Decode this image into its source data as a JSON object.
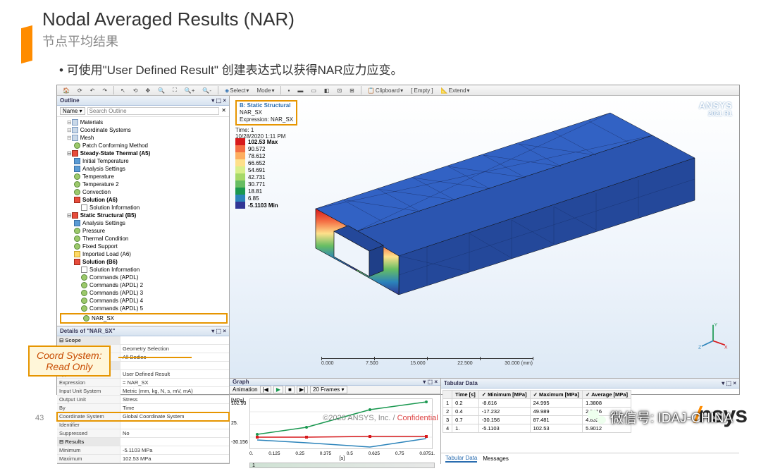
{
  "slide": {
    "title_en": "Nodal Averaged Results (NAR)",
    "title_zh": "节点平均结果",
    "bullet1": "可使用\"User Defined Result\" 创建表达式以获得NAR应力应变。",
    "page_no": "43",
    "copyright": "©2020 ANSYS, Inc. / ",
    "conf": "Confidential",
    "callout_l1": "Coord System:",
    "callout_l2": "Read Only"
  },
  "toolbar": {
    "select": "Select",
    "mode": "Mode",
    "clipboard": "Clipboard",
    "empty": "[ Empty ]",
    "extend": "Extend"
  },
  "outline": {
    "hdr": "Outline",
    "name": "Name",
    "search_ph": "Search Outline",
    "tree": [
      {
        "lvl": 1,
        "icon": "m",
        "label": "Materials"
      },
      {
        "lvl": 1,
        "icon": "m",
        "label": "Coordinate Systems"
      },
      {
        "lvl": 1,
        "icon": "m",
        "label": "Mesh"
      },
      {
        "lvl": 2,
        "icon": "g",
        "label": "Patch Conforming Method"
      },
      {
        "lvl": 1,
        "icon": "r",
        "label": "Steady-State Thermal (A5)",
        "bold": true
      },
      {
        "lvl": 2,
        "icon": "b",
        "label": "Initial Temperature"
      },
      {
        "lvl": 2,
        "icon": "b",
        "label": "Analysis Settings"
      },
      {
        "lvl": 2,
        "icon": "g",
        "label": "Temperature"
      },
      {
        "lvl": 2,
        "icon": "g",
        "label": "Temperature 2"
      },
      {
        "lvl": 2,
        "icon": "g",
        "label": "Convection"
      },
      {
        "lvl": 2,
        "icon": "r",
        "label": "Solution (A6)",
        "bold": true
      },
      {
        "lvl": 3,
        "icon": "p",
        "label": "Solution Information"
      },
      {
        "lvl": 1,
        "icon": "r",
        "label": "Static Structural (B5)",
        "bold": true
      },
      {
        "lvl": 2,
        "icon": "b",
        "label": "Analysis Settings"
      },
      {
        "lvl": 2,
        "icon": "g",
        "label": "Pressure"
      },
      {
        "lvl": 2,
        "icon": "g",
        "label": "Thermal Condition"
      },
      {
        "lvl": 2,
        "icon": "g",
        "label": "Fixed Support"
      },
      {
        "lvl": 2,
        "icon": "y",
        "label": "Imported Load (A6)"
      },
      {
        "lvl": 2,
        "icon": "r",
        "label": "Solution (B6)",
        "bold": true
      },
      {
        "lvl": 3,
        "icon": "p",
        "label": "Solution Information"
      },
      {
        "lvl": 3,
        "icon": "g",
        "label": "Commands (APDL)"
      },
      {
        "lvl": 3,
        "icon": "g",
        "label": "Commands (APDL) 2"
      },
      {
        "lvl": 3,
        "icon": "g",
        "label": "Commands (APDL) 3"
      },
      {
        "lvl": 3,
        "icon": "g",
        "label": "Commands (APDL) 4"
      },
      {
        "lvl": 3,
        "icon": "g",
        "label": "Commands (APDL) 5"
      },
      {
        "lvl": 3,
        "icon": "g",
        "label": "NAR_SX",
        "hl": true
      }
    ]
  },
  "details": {
    "hdr": "Details of \"NAR_SX\"",
    "rows": [
      {
        "sec": true,
        "lab": "Scope"
      },
      {
        "lab": "Scoping Method",
        "val": "Geometry Selection"
      },
      {
        "lab": "Geometry",
        "val": "All Bodies"
      },
      {
        "sec": true,
        "lab": "Definition"
      },
      {
        "lab": "Type",
        "val": "User Defined Result"
      },
      {
        "lab": "Expression",
        "val": "= NAR_SX"
      },
      {
        "lab": "Input Unit System",
        "val": "Metric (mm, kg, N, s, mV, mA)"
      },
      {
        "lab": "Output Unit",
        "val": "Stress"
      },
      {
        "lab": "By",
        "val": "Time"
      },
      {
        "lab": "Coordinate System",
        "val": "Global Coordinate System",
        "gold": true
      },
      {
        "lab": "Identifier",
        "val": ""
      },
      {
        "lab": "Suppressed",
        "val": "No"
      },
      {
        "sec": true,
        "lab": "Results"
      },
      {
        "lab": "Minimum",
        "val": "-5.1103 MPa"
      },
      {
        "lab": "Maximum",
        "val": "102.53 MPa"
      }
    ]
  },
  "viewport": {
    "title1": "B: Static Structural",
    "title2": "NAR_SX",
    "title3": "Expression: NAR_SX",
    "time": "Time: 1",
    "date": "10/28/2020 1:11 PM",
    "logo": "ANSYS",
    "version": "2021 R1",
    "legend": [
      {
        "c": "#d7191c",
        "v": "102.53 Max"
      },
      {
        "c": "#f46d43",
        "v": "90.572"
      },
      {
        "c": "#fdae61",
        "v": "78.612"
      },
      {
        "c": "#fee08b",
        "v": "66.652"
      },
      {
        "c": "#d9ef8b",
        "v": "54.691"
      },
      {
        "c": "#a6d96a",
        "v": "42.731"
      },
      {
        "c": "#66bd63",
        "v": "30.771"
      },
      {
        "c": "#1a9850",
        "v": "18.81"
      },
      {
        "c": "#2b83ba",
        "v": "6.85"
      },
      {
        "c": "#313695",
        "v": "-5.1103 Min"
      }
    ],
    "ruler": {
      "ticks": [
        "0.000",
        "7.500",
        "15.000",
        "22.500",
        "30.000 (mm)"
      ]
    }
  },
  "graph": {
    "hdr": "Graph",
    "anim": "Animation",
    "frames": "20 Frames",
    "ylabel": "[MPa]",
    "xlabel": "[s]",
    "yticks": [
      "102.53",
      "25.",
      "-30.156"
    ],
    "xticks": [
      "0.",
      "0.125",
      "0.25",
      "0.375",
      "0.5",
      "0.625",
      "0.75",
      "0.8751."
    ],
    "series": {
      "max": {
        "color": "#1a9850",
        "y": [
          24.995,
          49.989,
          87.481,
          102.53
        ]
      },
      "avg": {
        "color": "#d7191c",
        "y": [
          1.3808,
          2.7616,
          4.8327,
          5.9012
        ]
      },
      "min": {
        "color": "#2b83ba",
        "y": [
          -8.616,
          -17.232,
          -30.156,
          -5.1103
        ]
      }
    }
  },
  "tabular": {
    "hdr": "Tabular Data",
    "cols": [
      "",
      "Time [s]",
      "✓ Minimum [MPa]",
      "✓ Maximum [MPa]",
      "✓ Average [MPa]"
    ],
    "rows": [
      [
        "1",
        "0.2",
        "-8.616",
        "24.995",
        "1.3808"
      ],
      [
        "2",
        "0.4",
        "-17.232",
        "49.989",
        "2.7616"
      ],
      [
        "3",
        "0.7",
        "-30.156",
        "87.481",
        "4.8327"
      ],
      [
        "4",
        "1.",
        "-5.1103",
        "102.53",
        "5.9012"
      ]
    ],
    "tab1": "Tabular Data",
    "tab2": "Messages"
  },
  "wechat": {
    "label": "微信号: IDAJ-CHINA"
  },
  "corner": {
    "txt": "nsys"
  }
}
